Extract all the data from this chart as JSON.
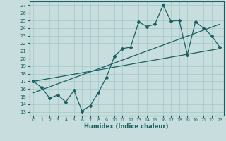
{
  "xlabel": "Humidex (Indice chaleur)",
  "bg_color": "#c8dede",
  "grid_color": "#a0c8c8",
  "line_color": "#1a6060",
  "xlim": [
    -0.5,
    23.5
  ],
  "ylim": [
    12.5,
    27.5
  ],
  "xticks": [
    0,
    1,
    2,
    3,
    4,
    5,
    6,
    7,
    8,
    9,
    10,
    11,
    12,
    13,
    14,
    15,
    16,
    17,
    18,
    19,
    20,
    21,
    22,
    23
  ],
  "yticks": [
    13,
    14,
    15,
    16,
    17,
    18,
    19,
    20,
    21,
    22,
    23,
    24,
    25,
    26,
    27
  ],
  "scatter_x": [
    0,
    1,
    2,
    3,
    4,
    5,
    6,
    7,
    8,
    9,
    10,
    11,
    12,
    13,
    14,
    15,
    16,
    17,
    18,
    19,
    20,
    21,
    22,
    23
  ],
  "scatter_y": [
    17.0,
    16.2,
    14.8,
    15.2,
    14.3,
    15.8,
    13.1,
    13.8,
    15.5,
    17.5,
    20.3,
    21.3,
    21.5,
    24.8,
    24.2,
    24.5,
    27.0,
    24.9,
    25.0,
    20.5,
    24.8,
    24.0,
    23.0,
    21.5
  ],
  "line1_x": [
    0,
    23
  ],
  "line1_y": [
    17.0,
    21.3
  ],
  "line2_x": [
    0,
    23
  ],
  "line2_y": [
    15.5,
    24.5
  ]
}
